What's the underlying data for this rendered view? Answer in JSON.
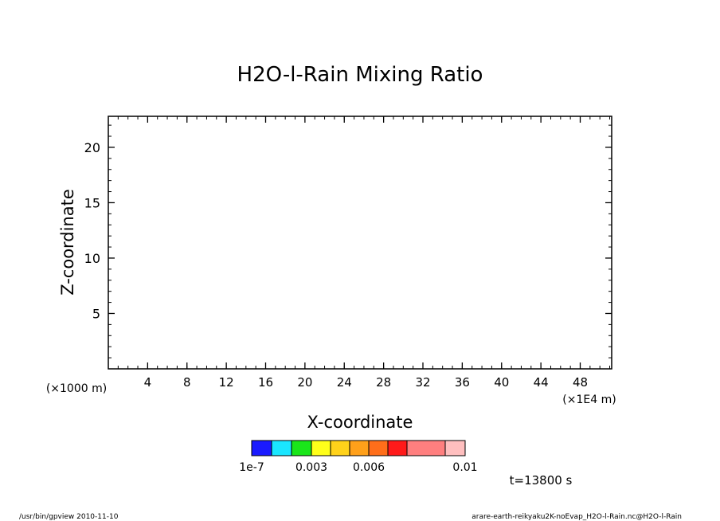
{
  "chart_data": {
    "type": "heatmap",
    "title": "H2O-l-Rain Mixing Ratio",
    "xlabel": "X-coordinate",
    "ylabel": "Z-coordinate",
    "x_unit_left": "(×1000 m)",
    "x_unit_right": "(×1E4 m)",
    "xlim": [
      0,
      51.2
    ],
    "ylim": [
      0,
      22.8
    ],
    "x_ticks": [
      4,
      8,
      12,
      16,
      20,
      24,
      28,
      32,
      36,
      40,
      44,
      48
    ],
    "y_ticks": [
      5,
      10,
      15,
      20
    ],
    "values": [],
    "colorbar": {
      "colors": [
        "#1a1aff",
        "#1ae6ff",
        "#1ae61a",
        "#ffff1a",
        "#ffd21a",
        "#ffa01a",
        "#ff6e1a",
        "#ff1a1a",
        "#ff7f7f",
        "#ffbfbf"
      ],
      "labels": [
        {
          "text": "1e-7",
          "at": 0
        },
        {
          "text": "0.003",
          "at": 3
        },
        {
          "text": "0.006",
          "at": 6
        },
        {
          "text": "0.01",
          "at": 10
        }
      ]
    },
    "time_label": "t=13800 s"
  },
  "footer": {
    "left": "/usr/bin/gpview   2010-11-10",
    "right": "arare-earth-reikyaku2K-noEvap_H2O-l-Rain.nc@H2O-l-Rain"
  }
}
